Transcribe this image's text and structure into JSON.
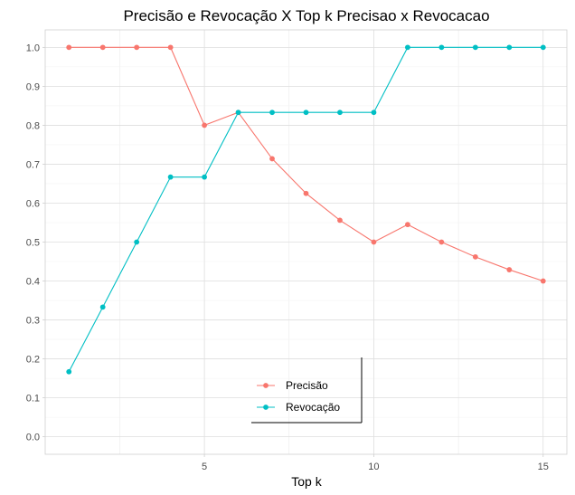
{
  "chart_data": {
    "type": "line",
    "title": "Precisão e Revocação X Top k Precisao x Revocacao",
    "xlabel": "Top k",
    "ylabel": "",
    "x": [
      1,
      2,
      3,
      4,
      5,
      6,
      7,
      8,
      9,
      10,
      11,
      12,
      13,
      14,
      15
    ],
    "xlim": [
      0.3,
      15.7
    ],
    "ylim": [
      -0.045,
      1.045
    ],
    "x_ticks": [
      5,
      10,
      15
    ],
    "x_tick_labels": [
      "5",
      "10",
      "15"
    ],
    "y_ticks": [
      0,
      0.1,
      0.2,
      0.3,
      0.4,
      0.5,
      0.6,
      0.7,
      0.8,
      0.9,
      1.0
    ],
    "y_tick_labels": [
      "0.0",
      "0.1",
      "0.2",
      "0.3",
      "0.4",
      "0.5",
      "0.6",
      "0.7",
      "0.8",
      "0.9",
      "1.0"
    ],
    "grid": true,
    "legend_position": "bottom-center",
    "series": [
      {
        "name": "Precisão",
        "color": "#F8766D",
        "values": [
          1.0,
          1.0,
          1.0,
          1.0,
          0.8,
          0.833,
          0.714,
          0.625,
          0.556,
          0.5,
          0.545,
          0.5,
          0.462,
          0.429,
          0.4
        ]
      },
      {
        "name": "Revocação",
        "color": "#00BFC4",
        "values": [
          0.167,
          0.333,
          0.5,
          0.667,
          0.667,
          0.833,
          0.833,
          0.833,
          0.833,
          0.833,
          1.0,
          1.0,
          1.0,
          1.0,
          1.0
        ]
      }
    ]
  }
}
